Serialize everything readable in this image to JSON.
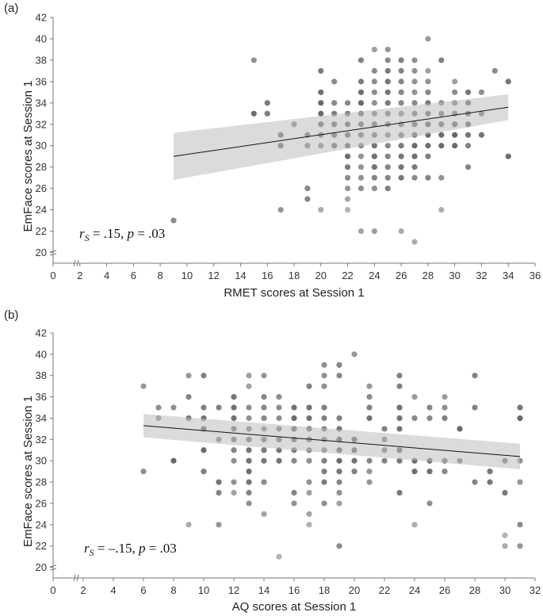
{
  "chart_data": [
    {
      "type": "scatter",
      "panel": "(a)",
      "xlabel": "RMET scores at Session 1",
      "ylabel": "EmFace scores at Session 1",
      "xlim": [
        0,
        36
      ],
      "ylim": [
        19,
        42
      ],
      "xticks": [
        0,
        2,
        4,
        6,
        8,
        10,
        12,
        14,
        16,
        18,
        20,
        22,
        24,
        26,
        28,
        30,
        32,
        34,
        36
      ],
      "yticks": [
        20,
        22,
        24,
        26,
        28,
        30,
        32,
        34,
        36,
        38,
        40,
        42
      ],
      "axis_break": true,
      "annotation": {
        "r_prefix": "r",
        "r_sub": "S",
        "r_eq": " = .15, ",
        "p_prefix": "p",
        "p_eq": " = .03"
      },
      "fit": {
        "x": [
          9,
          34
        ],
        "y": [
          29.0,
          33.6
        ],
        "ci_lower": [
          26.8,
          32.4
        ],
        "ci_upper": [
          31.2,
          34.8
        ]
      },
      "points": [
        [
          9,
          23
        ],
        [
          15,
          38
        ],
        [
          15,
          33
        ],
        [
          16,
          34
        ],
        [
          16,
          33
        ],
        [
          17,
          31
        ],
        [
          17,
          30
        ],
        [
          17,
          24
        ],
        [
          18,
          32
        ],
        [
          19,
          31
        ],
        [
          19,
          30
        ],
        [
          19,
          26
        ],
        [
          19,
          25
        ],
        [
          20,
          37
        ],
        [
          20,
          35
        ],
        [
          20,
          34
        ],
        [
          20,
          33
        ],
        [
          20,
          32
        ],
        [
          20,
          31
        ],
        [
          20,
          30
        ],
        [
          20,
          24
        ],
        [
          21,
          36
        ],
        [
          21,
          34
        ],
        [
          21,
          33
        ],
        [
          21,
          32
        ],
        [
          21,
          31
        ],
        [
          21,
          30
        ],
        [
          22,
          34
        ],
        [
          22,
          33
        ],
        [
          22,
          32
        ],
        [
          22,
          31
        ],
        [
          22,
          30
        ],
        [
          22,
          29
        ],
        [
          22,
          28
        ],
        [
          22,
          27
        ],
        [
          22,
          26
        ],
        [
          22,
          25
        ],
        [
          22,
          24
        ],
        [
          23,
          38
        ],
        [
          23,
          36
        ],
        [
          23,
          35
        ],
        [
          23,
          34
        ],
        [
          23,
          33
        ],
        [
          23,
          32
        ],
        [
          23,
          31
        ],
        [
          23,
          30
        ],
        [
          23,
          29
        ],
        [
          23,
          28
        ],
        [
          23,
          27
        ],
        [
          23,
          26
        ],
        [
          23,
          22
        ],
        [
          24,
          39
        ],
        [
          24,
          37
        ],
        [
          24,
          36
        ],
        [
          24,
          35
        ],
        [
          24,
          34
        ],
        [
          24,
          33
        ],
        [
          24,
          32
        ],
        [
          24,
          31
        ],
        [
          24,
          30
        ],
        [
          24,
          29
        ],
        [
          24,
          28
        ],
        [
          24,
          27
        ],
        [
          24,
          26
        ],
        [
          24,
          22
        ],
        [
          25,
          39
        ],
        [
          25,
          38
        ],
        [
          25,
          37
        ],
        [
          25,
          36
        ],
        [
          25,
          35
        ],
        [
          25,
          34
        ],
        [
          25,
          33
        ],
        [
          25,
          32
        ],
        [
          25,
          31
        ],
        [
          25,
          30
        ],
        [
          25,
          29
        ],
        [
          25,
          28
        ],
        [
          25,
          27
        ],
        [
          25,
          26
        ],
        [
          26,
          38
        ],
        [
          26,
          37
        ],
        [
          26,
          36
        ],
        [
          26,
          35
        ],
        [
          26,
          34
        ],
        [
          26,
          33
        ],
        [
          26,
          32
        ],
        [
          26,
          31
        ],
        [
          26,
          30
        ],
        [
          26,
          29
        ],
        [
          26,
          28
        ],
        [
          26,
          27
        ],
        [
          26,
          22
        ],
        [
          27,
          38
        ],
        [
          27,
          37
        ],
        [
          27,
          36
        ],
        [
          27,
          35
        ],
        [
          27,
          34
        ],
        [
          27,
          33
        ],
        [
          27,
          32
        ],
        [
          27,
          31
        ],
        [
          27,
          30
        ],
        [
          27,
          29
        ],
        [
          27,
          28
        ],
        [
          27,
          27
        ],
        [
          27,
          21
        ],
        [
          28,
          40
        ],
        [
          28,
          37
        ],
        [
          28,
          36
        ],
        [
          28,
          35
        ],
        [
          28,
          34
        ],
        [
          28,
          33
        ],
        [
          28,
          32
        ],
        [
          28,
          31
        ],
        [
          28,
          30
        ],
        [
          28,
          29
        ],
        [
          28,
          27
        ],
        [
          29,
          38
        ],
        [
          29,
          34
        ],
        [
          29,
          33
        ],
        [
          29,
          32
        ],
        [
          29,
          31
        ],
        [
          29,
          30
        ],
        [
          29,
          27
        ],
        [
          29,
          24
        ],
        [
          30,
          36
        ],
        [
          30,
          35
        ],
        [
          30,
          34
        ],
        [
          30,
          33
        ],
        [
          30,
          32
        ],
        [
          30,
          31
        ],
        [
          30,
          30
        ],
        [
          31,
          35
        ],
        [
          31,
          34
        ],
        [
          31,
          33
        ],
        [
          31,
          32
        ],
        [
          31,
          31
        ],
        [
          31,
          30
        ],
        [
          31,
          28
        ],
        [
          32,
          35
        ],
        [
          32,
          33
        ],
        [
          32,
          31
        ],
        [
          33,
          37
        ],
        [
          34,
          36
        ],
        [
          34,
          29
        ]
      ]
    },
    {
      "type": "scatter",
      "panel": "(b)",
      "xlabel": "AQ scores at Session 1",
      "ylabel": "EmFace scores at Session 1",
      "xlim": [
        0,
        32
      ],
      "ylim": [
        19,
        42
      ],
      "xticks": [
        0,
        2,
        4,
        6,
        8,
        10,
        12,
        14,
        16,
        18,
        20,
        22,
        24,
        26,
        28,
        30,
        32
      ],
      "yticks": [
        20,
        22,
        24,
        26,
        28,
        30,
        32,
        34,
        36,
        38,
        40,
        42
      ],
      "axis_break": true,
      "annotation": {
        "r_prefix": "r",
        "r_sub": "S",
        "r_eq": " = –.15, ",
        "p_prefix": "p",
        "p_eq": " = .03"
      },
      "fit": {
        "x": [
          6,
          31
        ],
        "y": [
          33.3,
          30.4
        ],
        "ci_lower": [
          32.2,
          29.2
        ],
        "ci_upper": [
          34.4,
          31.6
        ]
      },
      "points": [
        [
          6,
          37
        ],
        [
          6,
          29
        ],
        [
          7,
          35
        ],
        [
          7,
          34
        ],
        [
          8,
          35
        ],
        [
          8,
          30
        ],
        [
          9,
          38
        ],
        [
          9,
          36
        ],
        [
          9,
          34
        ],
        [
          9,
          24
        ],
        [
          10,
          38
        ],
        [
          10,
          35
        ],
        [
          10,
          34
        ],
        [
          10,
          33
        ],
        [
          10,
          31
        ],
        [
          10,
          29
        ],
        [
          11,
          35
        ],
        [
          11,
          32
        ],
        [
          11,
          28
        ],
        [
          11,
          27
        ],
        [
          11,
          24
        ],
        [
          12,
          36
        ],
        [
          12,
          35
        ],
        [
          12,
          34
        ],
        [
          12,
          33
        ],
        [
          12,
          32
        ],
        [
          12,
          31
        ],
        [
          12,
          30
        ],
        [
          12,
          28
        ],
        [
          12,
          27
        ],
        [
          13,
          38
        ],
        [
          13,
          37
        ],
        [
          13,
          35
        ],
        [
          13,
          34
        ],
        [
          13,
          33
        ],
        [
          13,
          32
        ],
        [
          13,
          31
        ],
        [
          13,
          30
        ],
        [
          13,
          29
        ],
        [
          13,
          28
        ],
        [
          13,
          27
        ],
        [
          13,
          26
        ],
        [
          14,
          38
        ],
        [
          14,
          36
        ],
        [
          14,
          35
        ],
        [
          14,
          34
        ],
        [
          14,
          33
        ],
        [
          14,
          32
        ],
        [
          14,
          31
        ],
        [
          14,
          30
        ],
        [
          14,
          28
        ],
        [
          14,
          25
        ],
        [
          15,
          36
        ],
        [
          15,
          35
        ],
        [
          15,
          34
        ],
        [
          15,
          33
        ],
        [
          15,
          32
        ],
        [
          15,
          31
        ],
        [
          15,
          30
        ],
        [
          15,
          21
        ],
        [
          16,
          35
        ],
        [
          16,
          34
        ],
        [
          16,
          33
        ],
        [
          16,
          32
        ],
        [
          16,
          31
        ],
        [
          16,
          30
        ],
        [
          16,
          27
        ],
        [
          16,
          26
        ],
        [
          17,
          37
        ],
        [
          17,
          35
        ],
        [
          17,
          34
        ],
        [
          17,
          33
        ],
        [
          17,
          32
        ],
        [
          17,
          31
        ],
        [
          17,
          30
        ],
        [
          17,
          28
        ],
        [
          17,
          27
        ],
        [
          17,
          25
        ],
        [
          17,
          24
        ],
        [
          18,
          39
        ],
        [
          18,
          38
        ],
        [
          18,
          37
        ],
        [
          18,
          35
        ],
        [
          18,
          34
        ],
        [
          18,
          33
        ],
        [
          18,
          32
        ],
        [
          18,
          31
        ],
        [
          18,
          30
        ],
        [
          18,
          29
        ],
        [
          18,
          28
        ],
        [
          18,
          26
        ],
        [
          19,
          39
        ],
        [
          19,
          38
        ],
        [
          19,
          34
        ],
        [
          19,
          33
        ],
        [
          19,
          32
        ],
        [
          19,
          31
        ],
        [
          19,
          30
        ],
        [
          19,
          29
        ],
        [
          19,
          28
        ],
        [
          19,
          27
        ],
        [
          19,
          26
        ],
        [
          19,
          22
        ],
        [
          20,
          40
        ],
        [
          20,
          32
        ],
        [
          20,
          31
        ],
        [
          20,
          30
        ],
        [
          20,
          29
        ],
        [
          21,
          37
        ],
        [
          21,
          36
        ],
        [
          21,
          35
        ],
        [
          21,
          34
        ],
        [
          21,
          30
        ],
        [
          21,
          29
        ],
        [
          21,
          28
        ],
        [
          22,
          33
        ],
        [
          22,
          32
        ],
        [
          22,
          31
        ],
        [
          22,
          30
        ],
        [
          23,
          38
        ],
        [
          23,
          37
        ],
        [
          23,
          35
        ],
        [
          23,
          34
        ],
        [
          23,
          33
        ],
        [
          23,
          31
        ],
        [
          23,
          30
        ],
        [
          23,
          27
        ],
        [
          24,
          36
        ],
        [
          24,
          34
        ],
        [
          24,
          30
        ],
        [
          24,
          29
        ],
        [
          24,
          24
        ],
        [
          25,
          35
        ],
        [
          25,
          34
        ],
        [
          25,
          30
        ],
        [
          25,
          29
        ],
        [
          25,
          26
        ],
        [
          26,
          36
        ],
        [
          26,
          35
        ],
        [
          26,
          34
        ],
        [
          26,
          30
        ],
        [
          26,
          29
        ],
        [
          27,
          33
        ],
        [
          27,
          30
        ],
        [
          28,
          38
        ],
        [
          28,
          35
        ],
        [
          28,
          28
        ],
        [
          29,
          29
        ],
        [
          29,
          28
        ],
        [
          30,
          30
        ],
        [
          30,
          27
        ],
        [
          30,
          23
        ],
        [
          30,
          22
        ],
        [
          31,
          35
        ],
        [
          31,
          34
        ],
        [
          31,
          30
        ],
        [
          31,
          28
        ],
        [
          31,
          24
        ],
        [
          31,
          22
        ]
      ]
    }
  ]
}
